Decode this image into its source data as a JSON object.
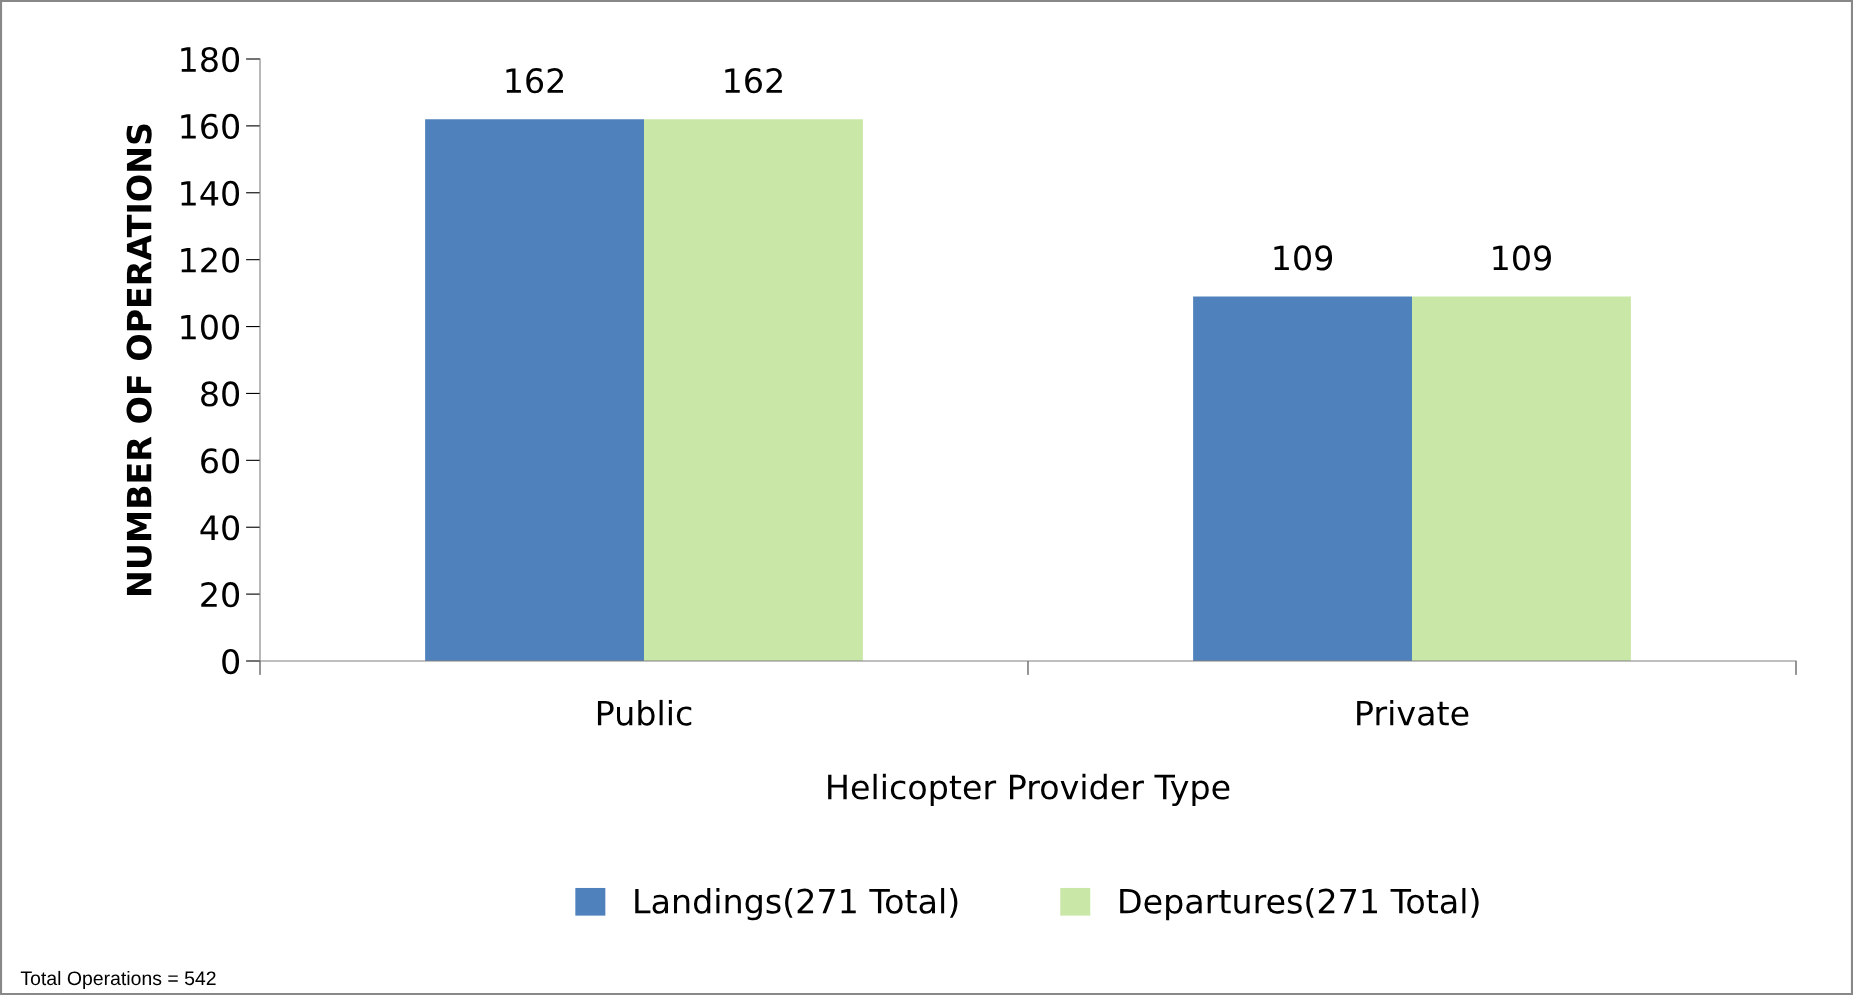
{
  "chart_data": {
    "type": "bar",
    "xlabel": "Helicopter Provider Type",
    "ylabel": "NUMBER OF OPERATIONS",
    "categories": [
      "Public",
      "Private"
    ],
    "series": [
      {
        "name": "Landings(271 Total)",
        "color": "#4f81bd",
        "values": [
          162,
          109
        ]
      },
      {
        "name": "Departures(271 Total)",
        "color": "#c9e7a7",
        "values": [
          162,
          109
        ]
      }
    ],
    "ylim": [
      0,
      180
    ],
    "yticks": [
      0,
      20,
      40,
      60,
      80,
      100,
      120,
      140,
      160,
      180
    ],
    "data_labels": true,
    "grid": false,
    "legend": "bottom",
    "annotations": [
      "Total Operations = 542"
    ]
  }
}
